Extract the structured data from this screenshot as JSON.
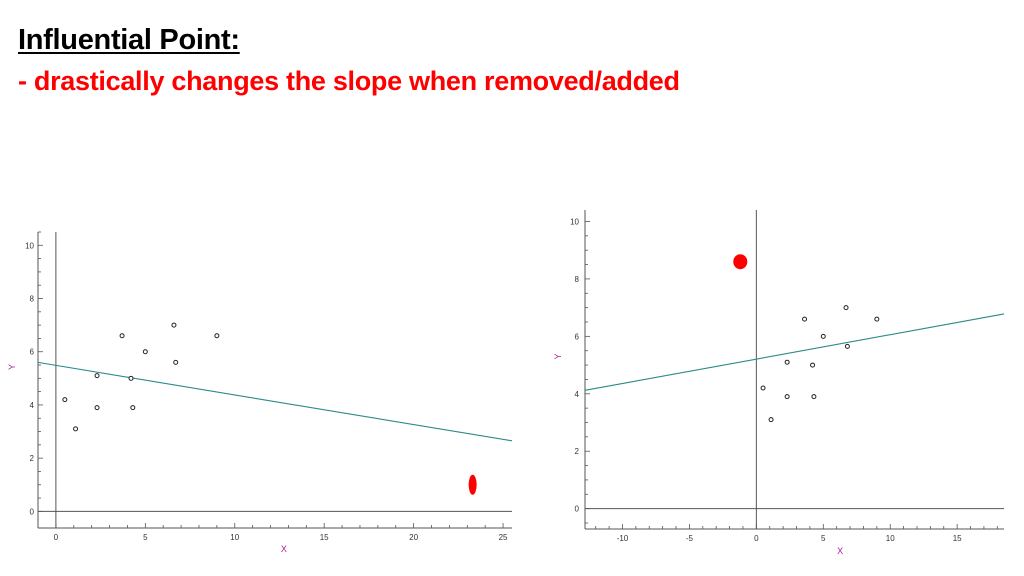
{
  "slide": {
    "title": "Influential Point:",
    "subtitle": "- drastically changes the slope when removed/added"
  },
  "colors": {
    "title": "#000000",
    "subtitle": "#ff0000",
    "regression_line": "#2a8a8a",
    "axis_label": "#b5179e",
    "axis": "#555555",
    "influential_marker": "#ff0000"
  },
  "chart_data": [
    {
      "type": "scatter",
      "xlabel": "X",
      "ylabel": "Y",
      "xlim": [
        -1,
        25.5
      ],
      "ylim": [
        -0.4,
        10.5
      ],
      "xticks": [
        0,
        5,
        10,
        15,
        20,
        25
      ],
      "yticks": [
        0,
        2,
        4,
        6,
        8,
        10
      ],
      "grid": false,
      "points": [
        {
          "x": 0.5,
          "y": 4.2
        },
        {
          "x": 1.1,
          "y": 3.1
        },
        {
          "x": 2.3,
          "y": 5.1
        },
        {
          "x": 2.3,
          "y": 3.9
        },
        {
          "x": 3.7,
          "y": 6.6
        },
        {
          "x": 4.2,
          "y": 5.0
        },
        {
          "x": 4.3,
          "y": 3.9
        },
        {
          "x": 5.0,
          "y": 6.0
        },
        {
          "x": 6.6,
          "y": 7.0
        },
        {
          "x": 6.7,
          "y": 5.6
        },
        {
          "x": 9.0,
          "y": 6.6
        }
      ],
      "influential_point": {
        "x": 23.3,
        "y": 1.0
      },
      "regression_line": {
        "x": [
          -1,
          25.5
        ],
        "y": [
          5.6,
          2.65
        ]
      }
    },
    {
      "type": "scatter",
      "xlabel": "X",
      "ylabel": "Y",
      "xlim": [
        -12.8,
        18.5
      ],
      "ylim": [
        -0.5,
        10.4
      ],
      "xticks": [
        -10,
        -5,
        0,
        5,
        10,
        15
      ],
      "yticks": [
        0,
        2,
        4,
        6,
        8,
        10
      ],
      "grid": false,
      "points": [
        {
          "x": 0.5,
          "y": 4.2
        },
        {
          "x": 1.1,
          "y": 3.1
        },
        {
          "x": 2.3,
          "y": 5.1
        },
        {
          "x": 2.3,
          "y": 3.9
        },
        {
          "x": 3.6,
          "y": 6.6
        },
        {
          "x": 4.2,
          "y": 5.0
        },
        {
          "x": 4.3,
          "y": 3.9
        },
        {
          "x": 5.0,
          "y": 6.0
        },
        {
          "x": 6.7,
          "y": 7.0
        },
        {
          "x": 6.8,
          "y": 5.65
        },
        {
          "x": 9.0,
          "y": 6.6
        }
      ],
      "influential_point": {
        "x": -1.2,
        "y": 8.6
      },
      "regression_line": {
        "x": [
          -12.8,
          18.5
        ],
        "y": [
          4.12,
          6.78
        ]
      }
    }
  ]
}
